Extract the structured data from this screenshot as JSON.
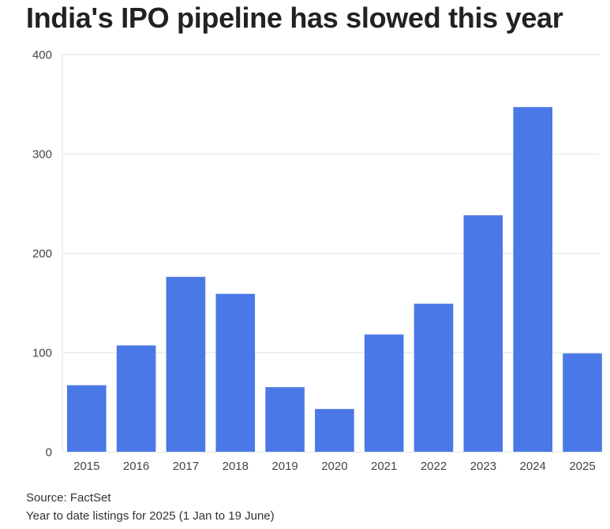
{
  "header": {
    "title": "India's IPO pipeline has slowed this year"
  },
  "footer": {
    "source": "Source: FactSet",
    "note": "Year to date listings for 2025 (1 Jan to 19 June)"
  },
  "colors": {
    "bar": "#4a78e6",
    "grid": "#e3e5e8",
    "axis_text": "#444444"
  },
  "chart_data": {
    "type": "bar",
    "title": "India's IPO pipeline has slowed this year",
    "xlabel": "",
    "ylabel": "",
    "categories": [
      "2015",
      "2016",
      "2017",
      "2018",
      "2019",
      "2020",
      "2021",
      "2022",
      "2023",
      "2024",
      "2025"
    ],
    "values": [
      67,
      107,
      176,
      159,
      65,
      43,
      118,
      149,
      238,
      347,
      99
    ],
    "ylim": [
      0,
      400
    ],
    "yticks": [
      0,
      100,
      200,
      300,
      400
    ],
    "grid": true,
    "legend": "none"
  }
}
